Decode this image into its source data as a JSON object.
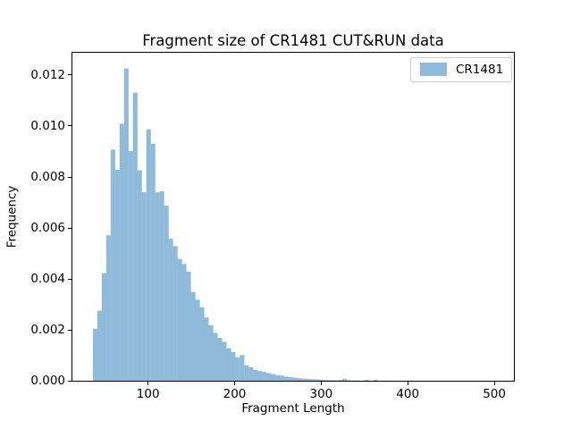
{
  "legend": {
    "label": "CR1481"
  },
  "colors": {
    "bar_fill": "#8fbbda",
    "axis": "#000000",
    "legend_border": "#cccccc",
    "background": "#ffffff"
  },
  "chart_data": {
    "type": "bar",
    "subtype": "histogram",
    "title": "Fragment size of CR1481 CUT&RUN data",
    "xlabel": "Fragment Length",
    "ylabel": "Frequency",
    "legend_entries": [
      "CR1481"
    ],
    "legend_position": "upper right",
    "grid": false,
    "xlim": [
      12.6,
      522.6
    ],
    "ylim": [
      0,
      0.012888
    ],
    "xticks": [
      100,
      200,
      300,
      400,
      500
    ],
    "yticks": [
      0,
      0.002,
      0.004,
      0.006,
      0.008,
      0.01,
      0.012
    ],
    "ytick_labels": [
      "0.000",
      "0.002",
      "0.004",
      "0.006",
      "0.008",
      "0.010",
      "0.012"
    ],
    "bin_start": 36.2,
    "bin_width": 5.144,
    "densities": [
      0.00206,
      0.00277,
      0.00424,
      0.00573,
      0.00909,
      0.0083,
      0.0101,
      0.01227,
      0.00903,
      0.01132,
      0.00828,
      0.00741,
      0.00988,
      0.00932,
      0.00741,
      0.00745,
      0.00689,
      0.00559,
      0.0053,
      0.0048,
      0.0046,
      0.0043,
      0.0035,
      0.0032,
      0.0029,
      0.0025,
      0.0022,
      0.0019,
      0.0017,
      0.00155,
      0.0013,
      0.00115,
      0.00094,
      0.00103,
      0.00063,
      0.00055,
      0.00045,
      0.0004,
      0.00037,
      0.00032,
      0.00028,
      0.00024,
      0.00022,
      0.00018,
      0.00016,
      0.00014,
      0.00012,
      0.0001,
      9e-05,
      8e-05,
      7e-05,
      6e-05,
      5e-05,
      4e-05,
      4e-05,
      5e-05,
      0.0001,
      4e-05,
      3e-05,
      3e-05,
      2e-05,
      6e-05,
      0.0,
      6e-05,
      2e-05,
      3e-05,
      1e-05,
      0.0,
      1e-05,
      0.0,
      0.0,
      1e-05,
      0.0,
      0.0,
      1e-05
    ]
  }
}
